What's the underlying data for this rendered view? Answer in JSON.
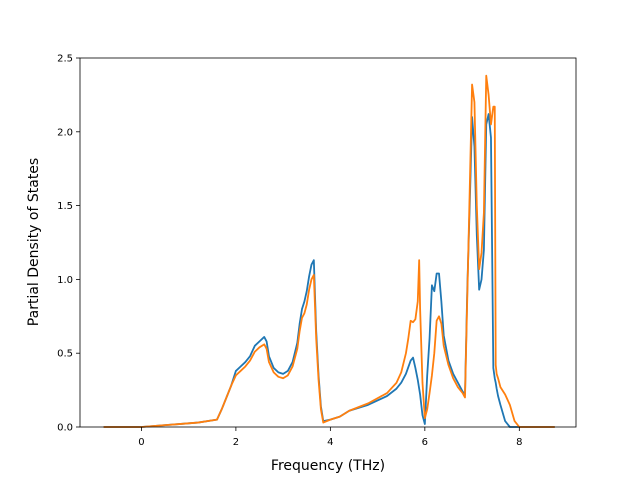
{
  "chart_data": {
    "type": "line",
    "xlabel": "Frequency (THz)",
    "ylabel": "Partial Density of States",
    "xlim": [
      -1.3,
      9.2
    ],
    "ylim": [
      0.0,
      2.5
    ],
    "xticks": [
      "0",
      "2",
      "4",
      "6",
      "8"
    ],
    "yticks": [
      "0.0",
      "0.5",
      "1.0",
      "1.5",
      "2.0",
      "2.5"
    ],
    "grid": false,
    "series": [
      {
        "color": "#1f77b4",
        "x": [
          -0.8,
          0.0,
          0.4,
          0.8,
          1.2,
          1.6,
          1.7,
          1.8,
          1.9,
          2.0,
          2.1,
          2.2,
          2.3,
          2.4,
          2.5,
          2.6,
          2.65,
          2.7,
          2.8,
          2.9,
          3.0,
          3.1,
          3.2,
          3.3,
          3.35,
          3.4,
          3.45,
          3.5,
          3.55,
          3.6,
          3.65,
          3.7,
          3.75,
          3.8,
          3.85,
          4.0,
          4.2,
          4.4,
          4.8,
          5.2,
          5.4,
          5.5,
          5.6,
          5.7,
          5.75,
          5.8,
          5.85,
          5.9,
          5.95,
          6.0,
          6.05,
          6.1,
          6.15,
          6.2,
          6.25,
          6.3,
          6.35,
          6.4,
          6.5,
          6.6,
          6.7,
          6.8,
          6.85,
          6.9,
          6.95,
          7.0,
          7.05,
          7.1,
          7.15,
          7.2,
          7.25,
          7.3,
          7.35,
          7.4,
          7.45,
          7.48,
          7.5,
          7.52,
          7.55,
          7.6,
          7.7,
          7.8,
          7.9,
          8.0,
          8.2,
          8.5,
          8.75
        ],
        "y": [
          0.0,
          0.0,
          0.01,
          0.02,
          0.03,
          0.05,
          0.12,
          0.2,
          0.28,
          0.38,
          0.41,
          0.44,
          0.48,
          0.55,
          0.58,
          0.61,
          0.58,
          0.48,
          0.4,
          0.37,
          0.36,
          0.38,
          0.44,
          0.57,
          0.7,
          0.8,
          0.85,
          0.92,
          1.02,
          1.1,
          1.13,
          0.65,
          0.35,
          0.14,
          0.04,
          0.05,
          0.07,
          0.11,
          0.15,
          0.21,
          0.26,
          0.3,
          0.36,
          0.45,
          0.47,
          0.4,
          0.32,
          0.22,
          0.08,
          0.02,
          0.35,
          0.6,
          0.96,
          0.92,
          1.04,
          1.04,
          0.85,
          0.62,
          0.45,
          0.36,
          0.3,
          0.24,
          0.22,
          0.95,
          1.5,
          2.1,
          1.9,
          1.3,
          0.93,
          1.0,
          1.2,
          2.05,
          2.12,
          1.96,
          0.4,
          0.33,
          0.3,
          0.26,
          0.21,
          0.15,
          0.04,
          0.0,
          0.0,
          0.0,
          0.0,
          0.0,
          0.0
        ]
      },
      {
        "color": "#ff7f0e",
        "x": [
          -0.8,
          0.0,
          0.4,
          0.8,
          1.2,
          1.6,
          1.7,
          1.8,
          1.9,
          2.0,
          2.1,
          2.2,
          2.3,
          2.4,
          2.5,
          2.6,
          2.65,
          2.7,
          2.8,
          2.9,
          3.0,
          3.1,
          3.2,
          3.3,
          3.35,
          3.4,
          3.45,
          3.5,
          3.55,
          3.6,
          3.65,
          3.7,
          3.75,
          3.8,
          3.85,
          4.0,
          4.2,
          4.4,
          4.8,
          5.2,
          5.4,
          5.5,
          5.6,
          5.65,
          5.7,
          5.75,
          5.8,
          5.85,
          5.88,
          5.9,
          5.95,
          6.0,
          6.05,
          6.1,
          6.15,
          6.2,
          6.25,
          6.3,
          6.35,
          6.4,
          6.5,
          6.6,
          6.7,
          6.8,
          6.85,
          6.9,
          6.95,
          7.0,
          7.05,
          7.1,
          7.15,
          7.2,
          7.25,
          7.3,
          7.35,
          7.4,
          7.45,
          7.48,
          7.5,
          7.52,
          7.55,
          7.6,
          7.7,
          7.8,
          7.9,
          8.0,
          8.2,
          8.5,
          8.75
        ],
        "y": [
          0.0,
          0.0,
          0.01,
          0.02,
          0.03,
          0.05,
          0.12,
          0.2,
          0.28,
          0.35,
          0.38,
          0.41,
          0.45,
          0.51,
          0.54,
          0.56,
          0.53,
          0.44,
          0.37,
          0.34,
          0.33,
          0.35,
          0.41,
          0.53,
          0.65,
          0.74,
          0.77,
          0.83,
          0.93,
          1.0,
          1.03,
          0.6,
          0.32,
          0.12,
          0.03,
          0.05,
          0.07,
          0.11,
          0.16,
          0.23,
          0.3,
          0.37,
          0.5,
          0.6,
          0.72,
          0.71,
          0.73,
          0.85,
          1.13,
          0.8,
          0.3,
          0.06,
          0.12,
          0.23,
          0.35,
          0.5,
          0.72,
          0.75,
          0.7,
          0.55,
          0.42,
          0.33,
          0.27,
          0.23,
          0.2,
          0.9,
          1.6,
          2.32,
          2.2,
          1.5,
          1.07,
          1.18,
          1.45,
          2.38,
          2.25,
          2.05,
          2.17,
          2.17,
          0.42,
          0.36,
          0.33,
          0.27,
          0.22,
          0.15,
          0.04,
          0.0,
          0.0,
          0.0,
          0.0
        ]
      }
    ]
  }
}
